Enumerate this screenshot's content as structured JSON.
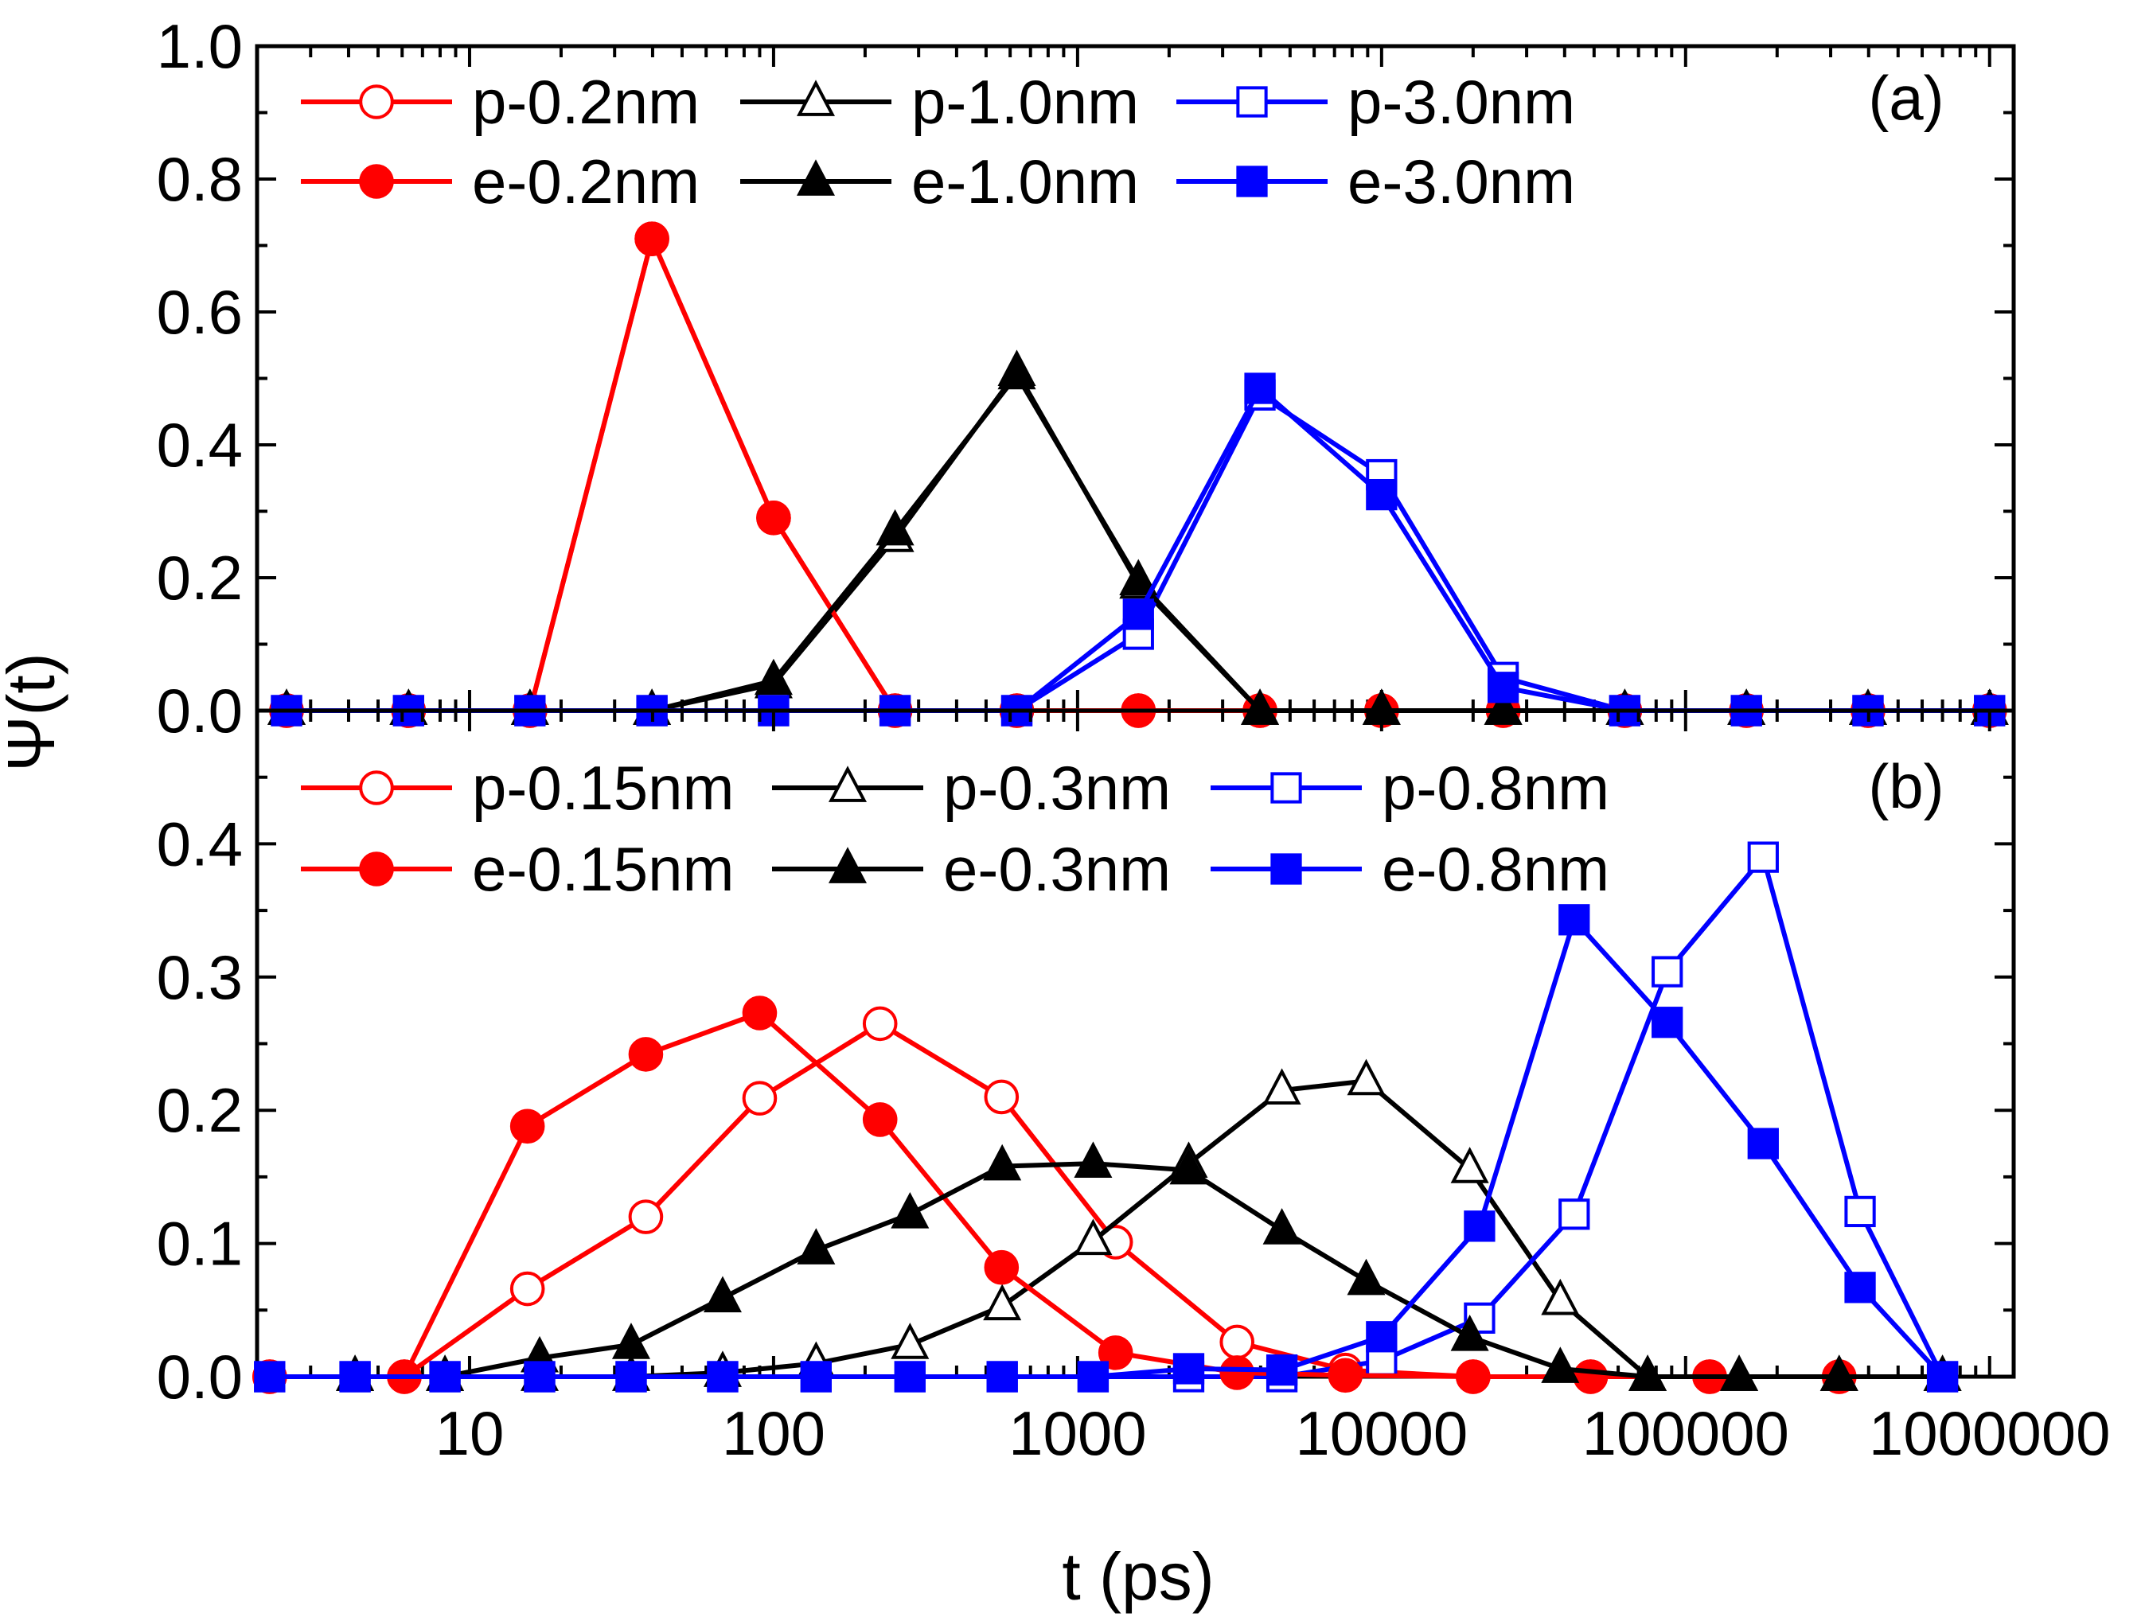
{
  "chart_data": {
    "type": "line",
    "xlabel": "t (ps)",
    "ylabel": "Ψ(t)",
    "xscale": "log",
    "xlim": [
      2,
      1200000
    ],
    "x_ticks": [
      10,
      100,
      1000,
      10000,
      100000,
      1000000
    ],
    "x_tick_labels": [
      "10",
      "100",
      "1000",
      "10000",
      "100000",
      "1000000"
    ],
    "panels": [
      {
        "tag": "(a)",
        "ylim": [
          0,
          1.0
        ],
        "y_ticks": [
          0.0,
          0.2,
          0.4,
          0.6,
          0.8,
          1.0
        ],
        "y_tick_labels": [
          "0.0",
          "0.2",
          "0.4",
          "0.6",
          "0.8",
          "1.0"
        ],
        "legend_position": "top",
        "series": [
          {
            "name": "p-0.2nm",
            "color": "#ff0000",
            "marker": "circle",
            "filled": false,
            "x": [
              2.5,
              6.3,
              15.8,
              39.8,
              100,
              251,
              631,
              1585,
              3981,
              10000,
              25119,
              63096,
              158489,
              398107,
              1000000
            ],
            "y": [
              0,
              0,
              0,
              0.71,
              0.29,
              0,
              0,
              0,
              0,
              0,
              0,
              0,
              0,
              0,
              0
            ]
          },
          {
            "name": "p-1.0nm",
            "color": "#000000",
            "marker": "triangle",
            "filled": false,
            "x": [
              2.5,
              6.3,
              15.8,
              39.8,
              100,
              251,
              631,
              1585,
              3981,
              10000,
              25119,
              63096,
              158489,
              398107,
              1000000
            ],
            "y": [
              0,
              0,
              0,
              0,
              0.04,
              0.26,
              0.51,
              0.19,
              0,
              0,
              0,
              0,
              0,
              0,
              0
            ]
          },
          {
            "name": "p-3.0nm",
            "color": "#0000ff",
            "marker": "square",
            "filled": false,
            "x": [
              2.5,
              6.3,
              15.8,
              39.8,
              100,
              251,
              631,
              1585,
              3981,
              10000,
              25119,
              63096,
              158489,
              398107,
              1000000
            ],
            "y": [
              0,
              0,
              0,
              0,
              0,
              0,
              0,
              0.115,
              0.475,
              0.355,
              0.05,
              0,
              0,
              0,
              0
            ]
          },
          {
            "name": "e-0.2nm",
            "color": "#ff0000",
            "marker": "circle",
            "filled": true,
            "x": [
              2.5,
              6.3,
              15.8,
              39.8,
              100,
              251,
              631,
              1585,
              3981,
              10000,
              25119,
              63096,
              158489,
              398107,
              1000000
            ],
            "y": [
              0,
              0,
              0,
              0.71,
              0.29,
              0,
              0,
              0,
              0,
              0,
              0,
              0,
              0,
              0,
              0
            ]
          },
          {
            "name": "e-1.0nm",
            "color": "#000000",
            "marker": "triangle",
            "filled": true,
            "x": [
              2.5,
              6.3,
              15.8,
              39.8,
              100,
              251,
              631,
              1585,
              3981,
              10000,
              25119,
              63096,
              158489,
              398107,
              1000000
            ],
            "y": [
              0,
              0,
              0,
              0,
              0.045,
              0.27,
              0.505,
              0.195,
              0,
              0,
              0,
              0,
              0,
              0,
              0
            ]
          },
          {
            "name": "e-3.0nm",
            "color": "#0000ff",
            "marker": "square",
            "filled": true,
            "x": [
              2.5,
              6.3,
              15.8,
              39.8,
              100,
              251,
              631,
              1585,
              3981,
              10000,
              25119,
              63096,
              158489,
              398107,
              1000000
            ],
            "y": [
              0,
              0,
              0,
              0,
              0,
              0,
              0,
              0.145,
              0.485,
              0.325,
              0.035,
              0,
              0,
              0,
              0
            ]
          }
        ]
      },
      {
        "tag": "(b)",
        "ylim": [
          0,
          0.5
        ],
        "y_ticks": [
          0.0,
          0.1,
          0.2,
          0.3,
          0.4
        ],
        "y_tick_labels": [
          "0.0",
          "0.1",
          "0.2",
          "0.3",
          "0.4"
        ],
        "legend_position": "top",
        "series": [
          {
            "name": "p-0.15nm",
            "color": "#ff0000",
            "marker": "circle",
            "filled": false,
            "x": [
              2.2,
              6.1,
              15.5,
              38,
              90,
              224,
              562,
              1334,
              3346,
              7600,
              20000,
              48700,
              120000,
              320000
            ],
            "y": [
              0,
              0,
              0.066,
              0.12,
              0.209,
              0.265,
              0.21,
              0.101,
              0.026,
              0.005,
              0,
              0,
              0,
              0
            ]
          },
          {
            "name": "p-0.3nm",
            "color": "#000000",
            "marker": "triangle",
            "filled": false,
            "x": [
              4.2,
              8.3,
              17,
              34,
              68,
              138,
              281,
              565,
              1125,
              2320,
              4700,
              8900,
              19500,
              38700,
              75000,
              150000,
              320000,
              700000
            ],
            "y": [
              0,
              0,
              0,
              0,
              0.003,
              0.01,
              0.024,
              0.053,
              0.102,
              0.16,
              0.215,
              0.222,
              0.156,
              0.057,
              0,
              0,
              0,
              0
            ]
          },
          {
            "name": "p-0.8nm",
            "color": "#0000ff",
            "marker": "square",
            "filled": false,
            "x": [
              2.2,
              4.2,
              8.3,
              17,
              34,
              68,
              138,
              281,
              565,
              1125,
              2320,
              4700,
              10000,
              21000,
              43000,
              87000,
              180000,
              375000,
              700000
            ],
            "y": [
              0,
              0,
              0,
              0,
              0,
              0,
              0,
              0,
              0,
              0,
              0,
              0,
              0.012,
              0.044,
              0.122,
              0.304,
              0.39,
              0.124,
              0
            ]
          },
          {
            "name": "e-0.15nm",
            "color": "#ff0000",
            "marker": "circle",
            "filled": true,
            "x": [
              2.2,
              6.1,
              15.5,
              38,
              90,
              224,
              562,
              1334,
              3346,
              7600,
              20000,
              48700,
              120000,
              320000
            ],
            "y": [
              0,
              0,
              0.188,
              0.242,
              0.273,
              0.193,
              0.082,
              0.018,
              0.003,
              0.001,
              0,
              0,
              0,
              0
            ]
          },
          {
            "name": "e-0.3nm",
            "color": "#000000",
            "marker": "triangle",
            "filled": true,
            "x": [
              4.2,
              8.3,
              17,
              34,
              68,
              138,
              281,
              565,
              1125,
              2320,
              4700,
              8900,
              19500,
              38700,
              75000,
              150000,
              320000,
              700000
            ],
            "y": [
              0,
              0,
              0.014,
              0.024,
              0.059,
              0.095,
              0.122,
              0.158,
              0.16,
              0.155,
              0.11,
              0.072,
              0.03,
              0.006,
              0,
              0,
              0,
              0
            ]
          },
          {
            "name": "e-0.8nm",
            "color": "#0000ff",
            "marker": "square",
            "filled": true,
            "x": [
              2.2,
              4.2,
              8.3,
              17,
              34,
              68,
              138,
              281,
              565,
              1125,
              2320,
              4700,
              10000,
              21000,
              43000,
              87000,
              180000,
              375000,
              700000
            ],
            "y": [
              0,
              0,
              0,
              0,
              0,
              0,
              0,
              0,
              0,
              0,
              0.006,
              0.005,
              0.03,
              0.113,
              0.343,
              0.266,
              0.175,
              0.067,
              0
            ]
          }
        ]
      }
    ]
  }
}
